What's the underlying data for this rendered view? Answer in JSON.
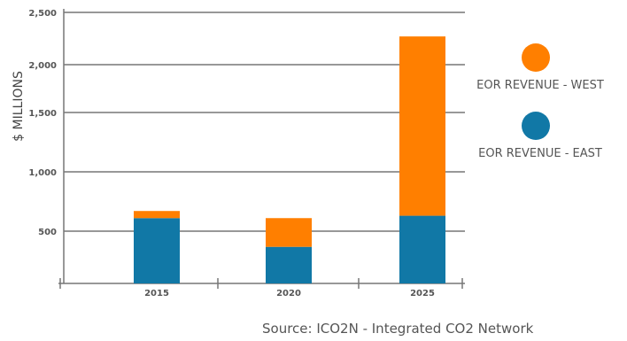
{
  "chart_data": {
    "type": "bar",
    "stacked": true,
    "categories": [
      "2015",
      "2020",
      "2025"
    ],
    "series": [
      {
        "name": "EOR REVENUE - EAST",
        "color": "#1178a6",
        "values": [
          610,
          350,
          630
        ]
      },
      {
        "name": "EOR REVENUE - WEST",
        "color": "#ff7f00",
        "values": [
          60,
          260,
          1640
        ]
      }
    ],
    "ylabel": "$ MILLIONS",
    "xlabel": "",
    "yticks": [
      500,
      1000,
      1500,
      2000,
      2500
    ],
    "ytick_labels": [
      "500",
      "1,000",
      "1,500",
      "2,000",
      "2,500"
    ],
    "ylim": [
      0,
      2500
    ],
    "grid": true,
    "legend_position": "right",
    "source": "Source: ICO2N - Integrated CO2 Network"
  }
}
